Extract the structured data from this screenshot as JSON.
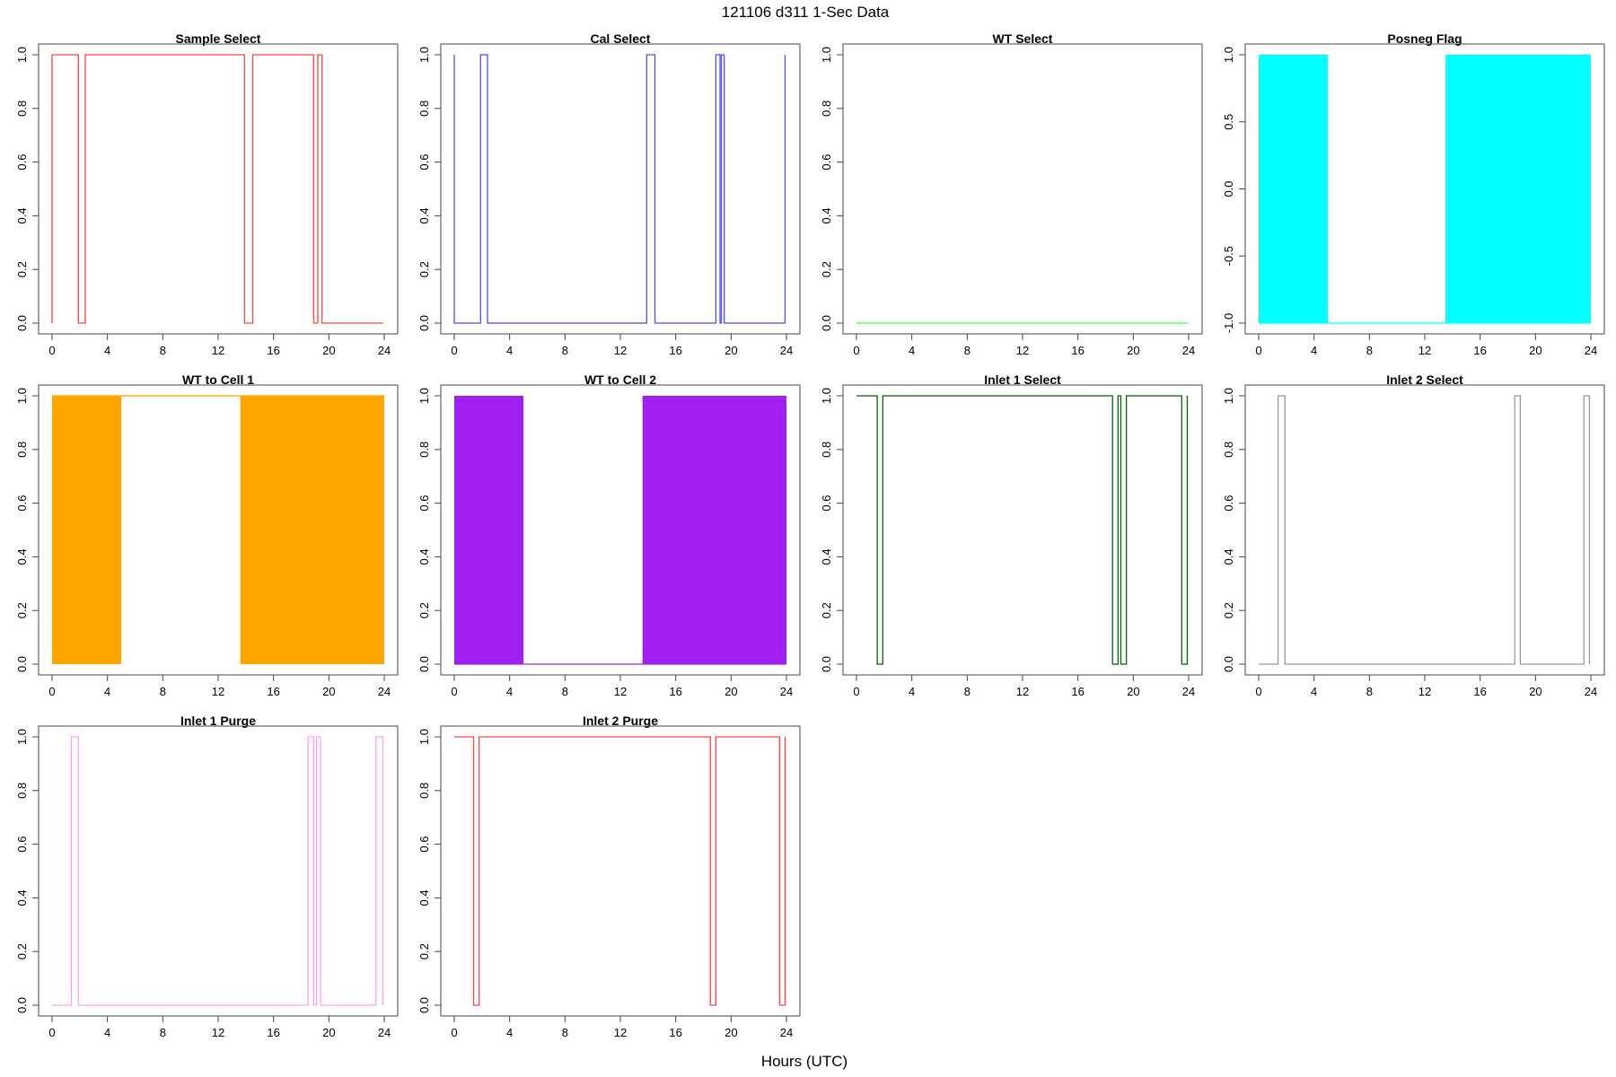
{
  "figure": {
    "title": "121106   d311   1-Sec Data",
    "xlabel": "Hours (UTC)"
  },
  "chart_data": [
    {
      "type": "line",
      "title": "Sample Select",
      "color": "#ff4040",
      "xlim": [
        0,
        24
      ],
      "ylim": [
        0,
        1
      ],
      "xticks": [
        "0",
        "4",
        "8",
        "12",
        "16",
        "20",
        "24"
      ],
      "yticks": [
        "0.0",
        "0.2",
        "0.4",
        "0.6",
        "0.8",
        "1.0"
      ],
      "x": [
        0,
        0,
        1.9,
        1.9,
        2.4,
        2.4,
        13.9,
        13.9,
        14.5,
        14.5,
        18.9,
        18.9,
        19.2,
        19.2,
        19.5,
        19.5,
        23.9,
        23.9
      ],
      "y": [
        0,
        1,
        1,
        0,
        0,
        1,
        1,
        0,
        0,
        1,
        1,
        0,
        0,
        1,
        1,
        0,
        0,
        0
      ],
      "style": "line"
    },
    {
      "type": "line",
      "title": "Cal Select",
      "color": "#4b4bff",
      "xlim": [
        0,
        24
      ],
      "ylim": [
        0,
        1
      ],
      "xticks": [
        "0",
        "4",
        "8",
        "12",
        "16",
        "20",
        "24"
      ],
      "yticks": [
        "0.0",
        "0.2",
        "0.4",
        "0.6",
        "0.8",
        "1.0"
      ],
      "x": [
        0,
        0,
        0,
        1.9,
        1.9,
        2.4,
        2.4,
        13.9,
        13.9,
        14.5,
        14.5,
        18.9,
        18.9,
        19.2,
        19.2,
        19.3,
        19.3,
        19.5,
        19.5,
        23.9,
        23.9
      ],
      "y": [
        1,
        0,
        0,
        0,
        1,
        1,
        0,
        0,
        1,
        1,
        0,
        0,
        1,
        1,
        0,
        0,
        1,
        1,
        0,
        0,
        1
      ],
      "style": "line"
    },
    {
      "type": "line",
      "title": "WT Select",
      "color": "#40ff40",
      "xlim": [
        0,
        24
      ],
      "ylim": [
        0,
        1
      ],
      "xticks": [
        "0",
        "4",
        "8",
        "12",
        "16",
        "20",
        "24"
      ],
      "yticks": [
        "0.0",
        "0.2",
        "0.4",
        "0.6",
        "0.8",
        "1.0"
      ],
      "x": [
        0,
        24
      ],
      "y": [
        0,
        0
      ],
      "style": "line"
    },
    {
      "type": "area",
      "title": "Posneg Flag",
      "color": "#00ffff",
      "xlim": [
        0,
        24
      ],
      "ylim": [
        -1,
        1
      ],
      "xticks": [
        "0",
        "4",
        "8",
        "12",
        "16",
        "20",
        "24"
      ],
      "yticks": [
        "-1.0",
        "-0.5",
        "0.0",
        "0.5",
        "1.0"
      ],
      "filled": [
        [
          0,
          5
        ],
        [
          13.5,
          24
        ]
      ],
      "baseline": -1,
      "style": "fill"
    },
    {
      "type": "area",
      "title": "WT to Cell 1",
      "color": "#ffa500",
      "xlim": [
        0,
        24
      ],
      "ylim": [
        0,
        1
      ],
      "xticks": [
        "0",
        "4",
        "8",
        "12",
        "16",
        "20",
        "24"
      ],
      "yticks": [
        "0.0",
        "0.2",
        "0.4",
        "0.6",
        "0.8",
        "1.0"
      ],
      "filled": [
        [
          0,
          5
        ],
        [
          13.6,
          24
        ]
      ],
      "baseline": 1,
      "style": "fill"
    },
    {
      "type": "area",
      "title": "WT to Cell 2",
      "color": "#a020f0",
      "xlim": [
        0,
        24
      ],
      "ylim": [
        0,
        1
      ],
      "xticks": [
        "0",
        "4",
        "8",
        "12",
        "16",
        "20",
        "24"
      ],
      "yticks": [
        "0.0",
        "0.2",
        "0.4",
        "0.6",
        "0.8",
        "1.0"
      ],
      "filled": [
        [
          0,
          5
        ],
        [
          13.6,
          24
        ]
      ],
      "baseline": 0,
      "style": "fill"
    },
    {
      "type": "line",
      "title": "Inlet 1 Select",
      "color": "#006400",
      "xlim": [
        0,
        24
      ],
      "ylim": [
        0,
        1
      ],
      "xticks": [
        "0",
        "4",
        "8",
        "12",
        "16",
        "20",
        "24"
      ],
      "yticks": [
        "0.0",
        "0.2",
        "0.4",
        "0.6",
        "0.8",
        "1.0"
      ],
      "x": [
        0,
        1.5,
        1.5,
        1.9,
        1.9,
        18.5,
        18.5,
        18.9,
        18.9,
        19.1,
        19.1,
        19.5,
        19.5,
        23.5,
        23.5,
        23.9,
        23.9
      ],
      "y": [
        1,
        1,
        0,
        0,
        1,
        1,
        0,
        0,
        1,
        1,
        0,
        0,
        1,
        1,
        0,
        0,
        1
      ],
      "style": "line"
    },
    {
      "type": "line",
      "title": "Inlet 2 Select",
      "color": "#999999",
      "xlim": [
        0,
        24
      ],
      "ylim": [
        0,
        1
      ],
      "xticks": [
        "0",
        "4",
        "8",
        "12",
        "16",
        "20",
        "24"
      ],
      "yticks": [
        "0.0",
        "0.2",
        "0.4",
        "0.6",
        "0.8",
        "1.0"
      ],
      "x": [
        0,
        1.4,
        1.4,
        1.9,
        1.9,
        18.5,
        18.5,
        18.9,
        18.9,
        23.5,
        23.5,
        23.9,
        23.9
      ],
      "y": [
        0,
        0,
        1,
        1,
        0,
        0,
        1,
        1,
        0,
        0,
        1,
        1,
        0
      ],
      "style": "line"
    },
    {
      "type": "line",
      "title": "Inlet 1 Purge",
      "color": "#ff9ff0",
      "xlim": [
        0,
        24
      ],
      "ylim": [
        0,
        1
      ],
      "xticks": [
        "0",
        "4",
        "8",
        "12",
        "16",
        "20",
        "24"
      ],
      "yticks": [
        "0.0",
        "0.2",
        "0.4",
        "0.6",
        "0.8",
        "1.0"
      ],
      "x": [
        0,
        1.4,
        1.4,
        1.9,
        1.9,
        18.5,
        18.5,
        18.9,
        18.9,
        19.1,
        19.1,
        19.4,
        19.4,
        23.4,
        23.4,
        23.9,
        23.9
      ],
      "y": [
        0,
        0,
        1,
        1,
        0,
        0,
        1,
        1,
        0,
        0,
        1,
        1,
        0,
        0,
        1,
        1,
        0
      ],
      "style": "line"
    },
    {
      "type": "line",
      "title": "Inlet 2 Purge",
      "color": "#ff4040",
      "xlim": [
        0,
        24
      ],
      "ylim": [
        0,
        1
      ],
      "xticks": [
        "0",
        "4",
        "8",
        "12",
        "16",
        "20",
        "24"
      ],
      "yticks": [
        "0.0",
        "0.2",
        "0.4",
        "0.6",
        "0.8",
        "1.0"
      ],
      "x": [
        0,
        1.4,
        1.4,
        1.8,
        1.8,
        18.5,
        18.5,
        18.9,
        18.9,
        23.5,
        23.5,
        23.9,
        23.9
      ],
      "y": [
        1,
        1,
        0,
        0,
        1,
        1,
        0,
        0,
        1,
        1,
        0,
        0,
        1
      ],
      "style": "line"
    }
  ]
}
